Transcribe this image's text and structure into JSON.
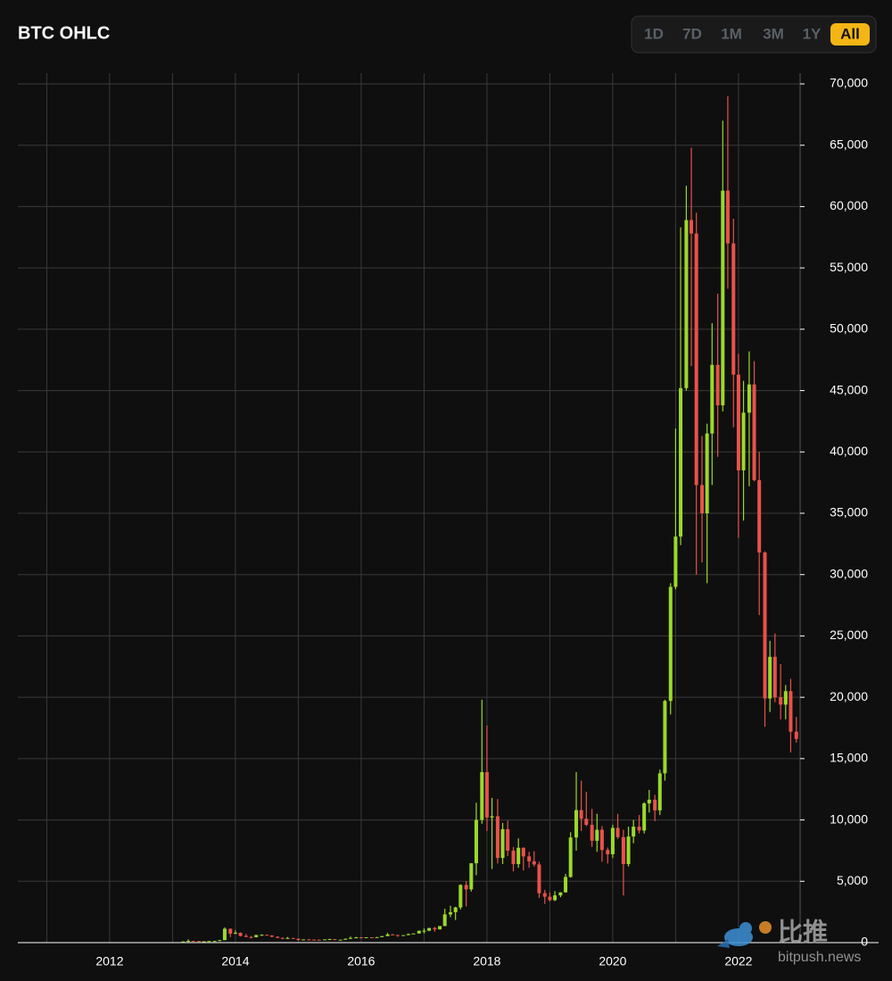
{
  "chart_data": {
    "type": "ohlc",
    "title": "BTC OHLC",
    "x": [
      2013.17,
      2013.25,
      2013.33,
      2013.42,
      2013.5,
      2013.58,
      2013.67,
      2013.75,
      2013.83,
      2013.92,
      2014.0,
      2014.08,
      2014.17,
      2014.25,
      2014.33,
      2014.42,
      2014.5,
      2014.58,
      2014.67,
      2014.75,
      2014.83,
      2014.92,
      2015.0,
      2015.08,
      2015.17,
      2015.25,
      2015.33,
      2015.42,
      2015.5,
      2015.58,
      2015.67,
      2015.75,
      2015.83,
      2015.92,
      2016.0,
      2016.08,
      2016.17,
      2016.25,
      2016.33,
      2016.42,
      2016.5,
      2016.58,
      2016.67,
      2016.75,
      2016.83,
      2016.92,
      2017.0,
      2017.08,
      2017.17,
      2017.25,
      2017.33,
      2017.42,
      2017.5,
      2017.58,
      2017.67,
      2017.75,
      2017.83,
      2017.92,
      2018.0,
      2018.08,
      2018.17,
      2018.25,
      2018.33,
      2018.42,
      2018.5,
      2018.58,
      2018.67,
      2018.75,
      2018.83,
      2018.92,
      2019.0,
      2019.08,
      2019.17,
      2019.25,
      2019.33,
      2019.42,
      2019.5,
      2019.58,
      2019.67,
      2019.75,
      2019.83,
      2019.92,
      2020.0,
      2020.08,
      2020.17,
      2020.25,
      2020.33,
      2020.42,
      2020.5,
      2020.58,
      2020.67,
      2020.75,
      2020.83,
      2020.92,
      2021.0,
      2021.08,
      2021.17,
      2021.25,
      2021.33,
      2021.42,
      2021.5,
      2021.58,
      2021.67,
      2021.75,
      2021.83,
      2021.92,
      2022.0,
      2022.08,
      2022.17,
      2022.25,
      2022.33,
      2022.42,
      2022.5,
      2022.58,
      2022.67,
      2022.75,
      2022.83,
      2022.92
    ],
    "open": [
      33,
      93,
      139,
      129,
      97,
      106,
      129,
      133,
      204,
      1130,
      730,
      800,
      550,
      460,
      445,
      620,
      640,
      585,
      480,
      385,
      340,
      375,
      320,
      215,
      255,
      245,
      235,
      230,
      262,
      285,
      230,
      236,
      315,
      378,
      430,
      370,
      437,
      416,
      448,
      530,
      670,
      625,
      575,
      610,
      700,
      745,
      965,
      970,
      1190,
      1080,
      1350,
      2300,
      2480,
      2870,
      4700,
      4340,
      6470,
      10000,
      13900,
      10200,
      10300,
      6900,
      9250,
      7500,
      6400,
      7730,
      7030,
      6630,
      6370,
      4030,
      3740,
      3460,
      3850,
      4100,
      5350,
      8570,
      10800,
      10100,
      9600,
      8300,
      9200,
      7550,
      7200,
      9350,
      8600,
      6400,
      8650,
      9450,
      9140,
      11350,
      11650,
      10780,
      13800,
      19700,
      29000,
      33100,
      45200,
      58900,
      57800,
      37300,
      35000,
      41500,
      47100,
      43800,
      61300,
      57000,
      46300,
      38500,
      43200,
      45500,
      37700,
      31800,
      19900,
      23300,
      20000,
      19400,
      20500,
      17200
    ],
    "high": [
      95,
      266,
      140,
      130,
      110,
      130,
      145,
      220,
      1240,
      1150,
      1000,
      830,
      700,
      540,
      630,
      680,
      650,
      600,
      500,
      410,
      460,
      385,
      320,
      265,
      300,
      260,
      245,
      265,
      315,
      285,
      245,
      330,
      500,
      465,
      460,
      440,
      440,
      465,
      540,
      780,
      700,
      630,
      615,
      740,
      750,
      980,
      1150,
      1200,
      1290,
      1350,
      2760,
      3000,
      2920,
      4750,
      5000,
      6480,
      11400,
      19800,
      17700,
      11800,
      11700,
      9750,
      9950,
      7800,
      8500,
      7770,
      7400,
      7450,
      6600,
      4300,
      4100,
      4200,
      4100,
      5600,
      9000,
      13900,
      13200,
      12300,
      10900,
      10500,
      9500,
      7750,
      9600,
      10500,
      9200,
      9450,
      10000,
      10400,
      11450,
      12450,
      12050,
      14100,
      19800,
      29300,
      41900,
      58300,
      61700,
      64800,
      59500,
      41300,
      42300,
      50500,
      52900,
      67000,
      69000,
      59000,
      48000,
      45800,
      48200,
      47400,
      40000,
      31900,
      24600,
      25200,
      22700,
      21000,
      21500,
      18400
    ],
    "low": [
      33,
      50,
      80,
      88,
      65,
      100,
      120,
      110,
      200,
      450,
      700,
      500,
      450,
      340,
      420,
      550,
      580,
      440,
      370,
      280,
      320,
      310,
      160,
      210,
      240,
      215,
      225,
      220,
      255,
      200,
      225,
      235,
      310,
      350,
      360,
      370,
      400,
      415,
      440,
      530,
      610,
      470,
      570,
      605,
      685,
      740,
      750,
      930,
      890,
      1080,
      1350,
      2080,
      1840,
      2700,
      2950,
      4160,
      5500,
      9700,
      9100,
      6000,
      6450,
      6400,
      7050,
      5800,
      6100,
      5880,
      6100,
      6200,
      3650,
      3150,
      3350,
      3390,
      3700,
      4080,
      5300,
      7500,
      9100,
      9500,
      7800,
      7400,
      6600,
      6450,
      6900,
      8450,
      3850,
      6200,
      8100,
      8900,
      8900,
      10600,
      9900,
      10400,
      13200,
      18600,
      28800,
      32400,
      45000,
      47000,
      30000,
      31000,
      29300,
      37300,
      39600,
      43300,
      53300,
      42000,
      33000,
      34400,
      37200,
      37600,
      26700,
      17600,
      18800,
      19600,
      18200,
      18200,
      15500,
      16300
    ],
    "close": [
      93,
      139,
      129,
      97,
      106,
      129,
      133,
      204,
      1130,
      730,
      800,
      550,
      460,
      445,
      620,
      640,
      585,
      480,
      385,
      340,
      375,
      320,
      215,
      255,
      245,
      235,
      230,
      262,
      285,
      230,
      236,
      315,
      378,
      430,
      370,
      437,
      416,
      448,
      530,
      670,
      625,
      575,
      610,
      700,
      745,
      965,
      970,
      1190,
      1080,
      1350,
      2300,
      2480,
      2870,
      4700,
      4340,
      6470,
      10000,
      13900,
      10200,
      10300,
      6900,
      9250,
      7500,
      6400,
      7730,
      7030,
      6630,
      6370,
      4030,
      3740,
      3460,
      3850,
      4100,
      5350,
      8570,
      10800,
      10100,
      9600,
      8300,
      9200,
      7550,
      7200,
      9350,
      8600,
      6400,
      8650,
      9450,
      9140,
      11350,
      11650,
      10780,
      13800,
      19700,
      29000,
      33100,
      45200,
      58900,
      57800,
      37300,
      35000,
      41500,
      47100,
      43800,
      61300,
      57000,
      46300,
      38500,
      43200,
      45500,
      37700,
      31800,
      19900,
      23300,
      20000,
      19400,
      20500,
      17200,
      16600
    ],
    "up_color": "#9bd92a",
    "down_color": "#e8524a",
    "xlim": [
      2010.54,
      2022.98
    ],
    "xticks": [
      2012,
      2014,
      2016,
      2018,
      2020,
      2022
    ],
    "xminor": [
      2011,
      2013,
      2015,
      2017,
      2019,
      2021
    ],
    "ylim": [
      0,
      70000
    ],
    "yticks": [
      0,
      {
        "value": 5000,
        "label": "5,000"
      },
      {
        "value": 10000,
        "label": "10,000"
      },
      {
        "value": 15000,
        "label": "15,000"
      },
      {
        "value": 20000,
        "label": "20,000"
      },
      {
        "value": 25000,
        "label": "25,000"
      },
      {
        "value": 30000,
        "label": "30,000"
      },
      {
        "value": 35000,
        "label": "35,000"
      },
      {
        "value": 40000,
        "label": "40,000"
      },
      {
        "value": 45000,
        "label": "45,000"
      },
      {
        "value": 50000,
        "label": "50,000"
      },
      {
        "value": 55000,
        "label": "55,000"
      },
      {
        "value": 60000,
        "label": "60,000"
      },
      {
        "value": 65000,
        "label": "65,000"
      },
      {
        "value": 70000,
        "label": "70,000"
      }
    ],
    "grid": true
  },
  "controls": {
    "buttons": [
      "1D",
      "7D",
      "1M",
      "3M",
      "1Y",
      "All"
    ],
    "active": 5
  },
  "watermark": {
    "name": "比推",
    "site": "bitpush.news"
  }
}
